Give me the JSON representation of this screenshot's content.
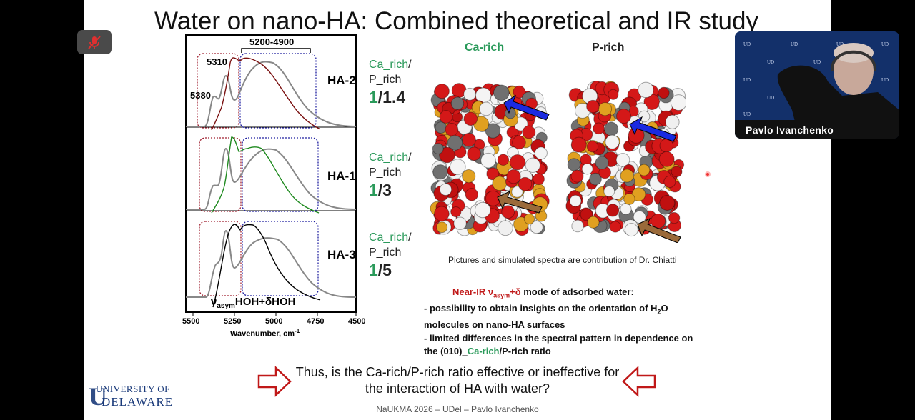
{
  "slide": {
    "title": "Water on nano-HA: Combined theoretical and IR study",
    "chart": {
      "range_label": "5200-4900",
      "peak_labels": [
        "5310",
        "5380"
      ],
      "mode_label": "ν",
      "mode_sub": "asym",
      "mode_rest": "HOH+δHOH",
      "x_ticks": [
        "5500",
        "5250",
        "5000",
        "4750",
        "4500"
      ],
      "xlabel": "Wavenumber, cm",
      "xlabel_sup": "-1",
      "samples": [
        {
          "name": "HA-2",
          "color": "#7a1010",
          "ca": "Ca_rich",
          "slash": "/",
          "p": "P_rich",
          "one": "1",
          "rest": "/1.4"
        },
        {
          "name": "HA-1",
          "color": "#1f8a1f",
          "ca": "Ca_rich",
          "slash": "/",
          "p": "P_rich",
          "one": "1",
          "rest": "/3"
        },
        {
          "name": "HA-3",
          "color": "#000000",
          "ca": "Ca_rich",
          "slash": "/",
          "p": "P_rich",
          "one": "1",
          "rest": "/5"
        }
      ]
    },
    "molecules": {
      "ca_label": "Ca-rich",
      "p_label": "P-rich",
      "ca_color": "#2a9a5a"
    },
    "caption": "Pictures and simulated spectra are contribution of Dr. Chiatti",
    "notes": {
      "heading_red": "Near-IR ν",
      "heading_sub": "asym",
      "heading_red2": "+δ",
      "heading_rest": " mode of adsorbed water:",
      "line1": "- possibility to obtain insights on the orientation of H",
      "line1_sub": "2",
      "line1_end": "O",
      "line2": "molecules on nano-HA surfaces",
      "line3": "- limited differences in the spectral pattern in dependence on",
      "line4a": "the (010)_",
      "line4_ca": "Ca-rich",
      "line4b": "/P-rich ratio"
    },
    "question": "Thus, is the Ca-rich/P-rich ratio effective or ineffective for the interaction of HA with water?",
    "logo": {
      "top": "UNIVERSITY OF",
      "bottom": "DELAWARE"
    },
    "footer": "NaUKMA 2026 – UDel – Pavlo Ivanchenko"
  },
  "call": {
    "participant_name": "Pavlo Ivanchenko",
    "mic_state": "muted"
  }
}
